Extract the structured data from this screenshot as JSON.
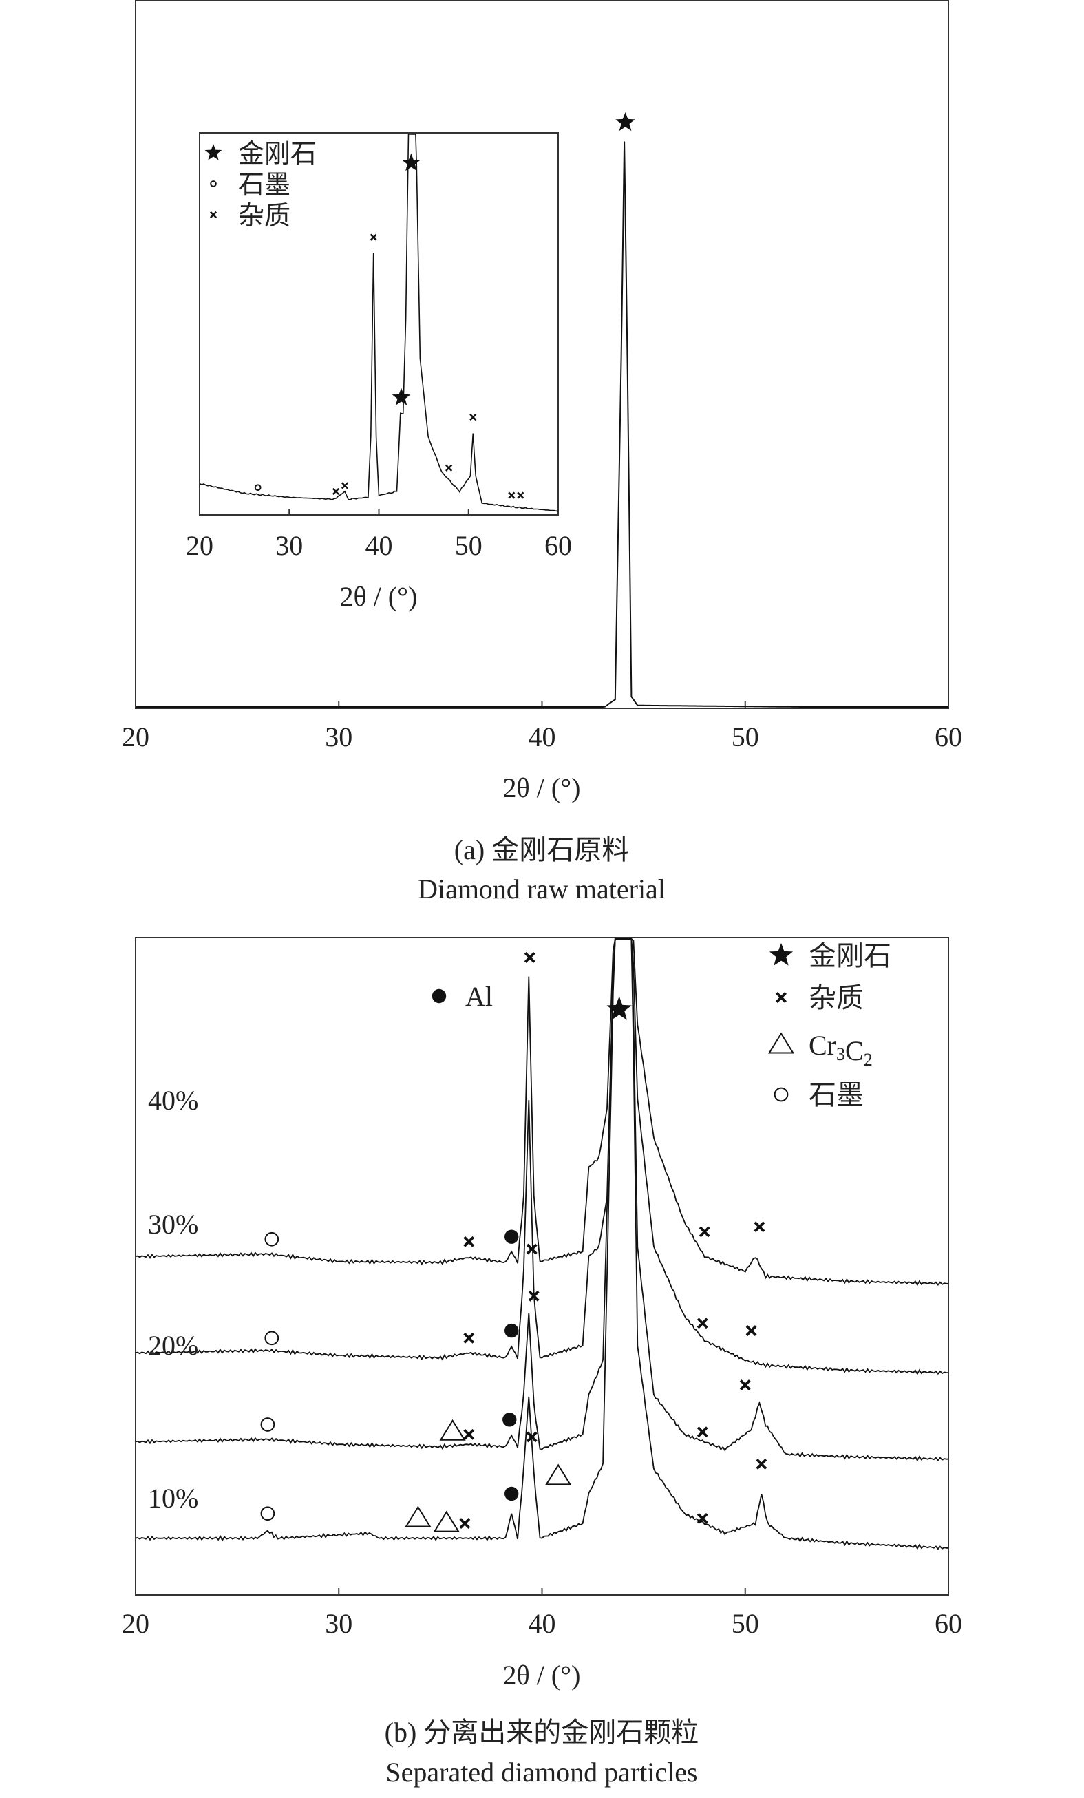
{
  "chart_data": [
    {
      "id": "a",
      "type": "line",
      "caption_cn": "(a) 金刚石原料",
      "caption_en": "Diamond raw material",
      "xlabel": "2θ / (°)",
      "xlim": [
        20,
        60
      ],
      "xticks": [
        20,
        30,
        40,
        50,
        60
      ],
      "y_ticks_shown": false,
      "main_series": {
        "name": "",
        "points": [
          [
            20,
            0.0
          ],
          [
            43.0,
            0.0
          ],
          [
            43.3,
            0.008
          ],
          [
            43.6,
            0.015
          ],
          [
            43.9,
            0.6
          ],
          [
            44.05,
            0.97
          ],
          [
            44.2,
            0.6
          ],
          [
            44.4,
            0.02
          ],
          [
            44.7,
            0.005
          ],
          [
            60,
            0.0
          ]
        ]
      },
      "main_markers": [
        {
          "symbol": "diamond",
          "x": 44.1,
          "y": 1.0
        }
      ],
      "inset": {
        "xlabel": "2θ / (°)",
        "xlim": [
          20,
          60
        ],
        "xticks": [
          20,
          30,
          40,
          50,
          60
        ],
        "legend": [
          {
            "symbol": "diamond",
            "label": "金刚石"
          },
          {
            "symbol": "graphite",
            "label": "石墨"
          },
          {
            "symbol": "impurity",
            "label": "杂质"
          }
        ],
        "series": {
          "name": "",
          "points": [
            [
              20,
              0.08
            ],
            [
              25,
              0.055
            ],
            [
              30,
              0.045
            ],
            [
              35,
              0.04
            ],
            [
              36.2,
              0.06
            ],
            [
              36.6,
              0.04
            ],
            [
              38.8,
              0.045
            ],
            [
              39.1,
              0.2
            ],
            [
              39.4,
              0.67
            ],
            [
              39.7,
              0.2
            ],
            [
              40.0,
              0.05
            ],
            [
              42.0,
              0.06
            ],
            [
              42.4,
              0.26
            ],
            [
              42.7,
              0.26
            ],
            [
              43.0,
              0.5
            ],
            [
              43.3,
              0.98
            ],
            [
              43.6,
              1.2
            ],
            [
              44.0,
              1.2
            ],
            [
              44.2,
              0.9
            ],
            [
              44.6,
              0.4
            ],
            [
              45.5,
              0.2
            ],
            [
              47.0,
              0.11
            ],
            [
              49.0,
              0.06
            ],
            [
              50.2,
              0.1
            ],
            [
              50.5,
              0.21
            ],
            [
              50.8,
              0.1
            ],
            [
              51.5,
              0.03
            ],
            [
              55.0,
              0.02
            ],
            [
              60,
              0.01
            ]
          ]
        },
        "markers": [
          {
            "symbol": "graphite",
            "x": 26.5,
            "y": 0.07
          },
          {
            "symbol": "impurity",
            "x": 35.2,
            "y": 0.06
          },
          {
            "symbol": "impurity",
            "x": 36.2,
            "y": 0.075
          },
          {
            "symbol": "impurity",
            "x": 39.4,
            "y": 0.71
          },
          {
            "symbol": "diamond",
            "x": 42.5,
            "y": 0.3
          },
          {
            "symbol": "diamond",
            "x": 43.6,
            "y": 0.9
          },
          {
            "symbol": "impurity",
            "x": 47.8,
            "y": 0.12
          },
          {
            "symbol": "impurity",
            "x": 50.5,
            "y": 0.25
          },
          {
            "symbol": "impurity",
            "x": 54.8,
            "y": 0.05
          },
          {
            "symbol": "impurity",
            "x": 55.8,
            "y": 0.05
          }
        ]
      }
    },
    {
      "id": "b",
      "type": "line",
      "caption_cn": "(b) 分离出来的金刚石颗粒",
      "caption_en": "Separated diamond particles",
      "xlabel": "2θ / (°)",
      "xlim": [
        20,
        60
      ],
      "xticks": [
        20,
        30,
        40,
        50,
        60
      ],
      "y_ticks_shown": false,
      "legend": [
        {
          "symbol": "diamond",
          "label": "金刚石"
        },
        {
          "symbol": "impurity",
          "label": "杂质"
        },
        {
          "symbol": "triangle",
          "label": "Cr3C2",
          "label_main": "Cr",
          "sub1": "3",
          "mid": "C",
          "sub2": "2"
        },
        {
          "symbol": "graphite",
          "label": "石墨"
        }
      ],
      "al_legend": {
        "symbol": "al",
        "label": "Al"
      },
      "series": [
        {
          "name": "40%",
          "points": [
            [
              20,
              0.48
            ],
            [
              26.5,
              0.485
            ],
            [
              30,
              0.47
            ],
            [
              35,
              0.468
            ],
            [
              36.4,
              0.478
            ],
            [
              38.2,
              0.468
            ],
            [
              38.5,
              0.49
            ],
            [
              38.8,
              0.468
            ],
            [
              39.1,
              0.6
            ],
            [
              39.35,
              1.05
            ],
            [
              39.6,
              0.6
            ],
            [
              39.9,
              0.47
            ],
            [
              42.0,
              0.49
            ],
            [
              42.3,
              0.66
            ],
            [
              42.8,
              0.68
            ],
            [
              43.2,
              0.78
            ],
            [
              43.6,
              1.2
            ],
            [
              44.4,
              1.2
            ],
            [
              44.7,
              0.95
            ],
            [
              45.5,
              0.72
            ],
            [
              47.0,
              0.55
            ],
            [
              48.0,
              0.48
            ],
            [
              50.0,
              0.45
            ],
            [
              50.5,
              0.48
            ],
            [
              51.0,
              0.44
            ],
            [
              55.0,
              0.43
            ],
            [
              60,
              0.425
            ]
          ]
        },
        {
          "name": "30%",
          "points": [
            [
              20,
              0.285
            ],
            [
              26.5,
              0.29
            ],
            [
              30,
              0.28
            ],
            [
              35,
              0.275
            ],
            [
              36.4,
              0.285
            ],
            [
              38.2,
              0.275
            ],
            [
              38.5,
              0.298
            ],
            [
              38.8,
              0.275
            ],
            [
              39.1,
              0.45
            ],
            [
              39.35,
              0.8
            ],
            [
              39.6,
              0.4
            ],
            [
              39.9,
              0.275
            ],
            [
              42.0,
              0.3
            ],
            [
              42.3,
              0.48
            ],
            [
              42.8,
              0.5
            ],
            [
              43.2,
              0.6
            ],
            [
              43.6,
              1.2
            ],
            [
              44.4,
              1.2
            ],
            [
              44.7,
              0.8
            ],
            [
              45.5,
              0.5
            ],
            [
              47.0,
              0.36
            ],
            [
              48.0,
              0.31
            ],
            [
              50.0,
              0.27
            ],
            [
              51.0,
              0.26
            ],
            [
              55.0,
              0.25
            ],
            [
              60,
              0.245
            ]
          ]
        },
        {
          "name": "20%",
          "points": [
            [
              20,
              0.105
            ],
            [
              26.5,
              0.11
            ],
            [
              30,
              0.1
            ],
            [
              35,
              0.095
            ],
            [
              36.4,
              0.1
            ],
            [
              38.2,
              0.095
            ],
            [
              38.5,
              0.118
            ],
            [
              38.8,
              0.095
            ],
            [
              39.1,
              0.2
            ],
            [
              39.35,
              0.37
            ],
            [
              39.6,
              0.18
            ],
            [
              39.9,
              0.09
            ],
            [
              42.0,
              0.12
            ],
            [
              42.3,
              0.2
            ],
            [
              43.0,
              0.27
            ],
            [
              43.6,
              1.2
            ],
            [
              44.4,
              1.2
            ],
            [
              44.7,
              0.5
            ],
            [
              45.5,
              0.2
            ],
            [
              47.0,
              0.12
            ],
            [
              49.0,
              0.09
            ],
            [
              50.3,
              0.13
            ],
            [
              50.7,
              0.185
            ],
            [
              51.0,
              0.14
            ],
            [
              52.0,
              0.08
            ],
            [
              55.0,
              0.075
            ],
            [
              60,
              0.07
            ]
          ]
        },
        {
          "name": "10%",
          "points": [
            [
              20,
              -0.09
            ],
            [
              26.0,
              -0.09
            ],
            [
              26.5,
              -0.075
            ],
            [
              27.0,
              -0.09
            ],
            [
              31.5,
              -0.08
            ],
            [
              32.0,
              -0.09
            ],
            [
              36.0,
              -0.09
            ],
            [
              38.2,
              -0.09
            ],
            [
              38.5,
              -0.04
            ],
            [
              38.8,
              -0.09
            ],
            [
              39.1,
              0.05
            ],
            [
              39.35,
              0.2
            ],
            [
              39.6,
              0.04
            ],
            [
              39.9,
              -0.09
            ],
            [
              42.0,
              -0.06
            ],
            [
              42.3,
              0.0
            ],
            [
              43.0,
              0.06
            ],
            [
              43.6,
              1.2
            ],
            [
              44.4,
              1.2
            ],
            [
              44.7,
              0.3
            ],
            [
              45.5,
              0.05
            ],
            [
              47.0,
              -0.04
            ],
            [
              49.0,
              -0.08
            ],
            [
              50.5,
              -0.06
            ],
            [
              50.8,
              0.0
            ],
            [
              51.1,
              -0.06
            ],
            [
              52.0,
              -0.09
            ],
            [
              55.0,
              -0.1
            ],
            [
              60,
              -0.11
            ]
          ]
        }
      ],
      "series_labels": [
        "40%",
        "30%",
        "20%",
        "10%"
      ],
      "markers": [
        {
          "symbol": "diamond",
          "x": 43.8,
          "y": 0.98
        },
        {
          "symbol": "graphite",
          "x": 26.7,
          "y": 0.515
        },
        {
          "symbol": "impurity",
          "x": 36.4,
          "y": 0.51
        },
        {
          "symbol": "al",
          "x": 38.5,
          "y": 0.52
        },
        {
          "symbol": "impurity",
          "x": 39.5,
          "y": 0.495
        },
        {
          "symbol": "impurity",
          "x": 39.4,
          "y": 1.085
        },
        {
          "symbol": "impurity",
          "x": 48.0,
          "y": 0.53
        },
        {
          "symbol": "impurity",
          "x": 50.7,
          "y": 0.54
        },
        {
          "symbol": "graphite",
          "x": 26.7,
          "y": 0.315
        },
        {
          "symbol": "impurity",
          "x": 36.4,
          "y": 0.315
        },
        {
          "symbol": "al",
          "x": 38.5,
          "y": 0.33
        },
        {
          "symbol": "impurity",
          "x": 47.9,
          "y": 0.345
        },
        {
          "symbol": "impurity",
          "x": 50.3,
          "y": 0.33
        },
        {
          "symbol": "graphite",
          "x": 26.5,
          "y": 0.14
        },
        {
          "symbol": "triangle",
          "x": 35.6,
          "y": 0.125
        },
        {
          "symbol": "impurity",
          "x": 36.4,
          "y": 0.12
        },
        {
          "symbol": "al",
          "x": 38.4,
          "y": 0.15
        },
        {
          "symbol": "impurity",
          "x": 39.6,
          "y": 0.4
        },
        {
          "symbol": "impurity",
          "x": 47.9,
          "y": 0.125
        },
        {
          "symbol": "impurity",
          "x": 50.0,
          "y": 0.22
        },
        {
          "symbol": "graphite",
          "x": 26.5,
          "y": -0.04
        },
        {
          "symbol": "triangle",
          "x": 33.9,
          "y": -0.05
        },
        {
          "symbol": "triangle",
          "x": 35.3,
          "y": -0.06
        },
        {
          "symbol": "impurity",
          "x": 36.2,
          "y": -0.06
        },
        {
          "symbol": "al",
          "x": 38.5,
          "y": 0.0
        },
        {
          "symbol": "impurity",
          "x": 39.5,
          "y": 0.115
        },
        {
          "symbol": "triangle",
          "x": 40.8,
          "y": 0.035
        },
        {
          "symbol": "impurity",
          "x": 47.9,
          "y": -0.05
        },
        {
          "symbol": "impurity",
          "x": 50.8,
          "y": 0.06
        }
      ]
    }
  ]
}
